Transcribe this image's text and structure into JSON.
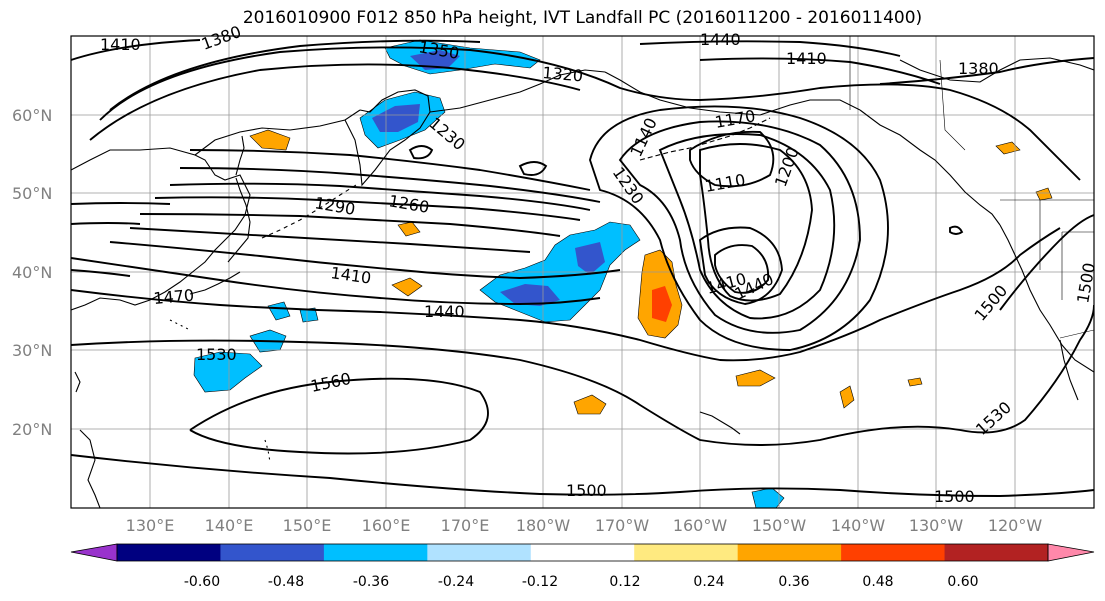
{
  "title": "2016010900 F012 850 hPa height, IVT Landfall PC (2016011200 - 2016011400)",
  "lat_labels": [
    "60°N",
    "50°N",
    "40°N",
    "30°N",
    "20°N"
  ],
  "lon_labels": [
    "130°E",
    "140°E",
    "150°E",
    "160°E",
    "170°E",
    "180°W",
    "170°W",
    "160°W",
    "150°W",
    "140°W",
    "130°W",
    "120°W"
  ],
  "height_contour_labels": [
    "1410",
    "1380",
    "1350",
    "1440",
    "1410",
    "1380",
    "1320",
    "1230",
    "1140",
    "1170",
    "1200",
    "1110",
    "1230",
    "1260",
    "1290",
    "1410",
    "1470",
    "1440",
    "1410",
    "1440",
    "1500",
    "1500",
    "1530",
    "1560",
    "1530",
    "1500",
    "1500"
  ],
  "colorbar": {
    "tick_labels": [
      "-0.60",
      "-0.48",
      "-0.36",
      "-0.24",
      "-0.12",
      "0.12",
      "0.24",
      "0.36",
      "0.48",
      "0.60"
    ],
    "colors": [
      "#9933cc",
      "#000080",
      "#3355cc",
      "#00bfff",
      "#b0e2ff",
      "#ffffff",
      "#ffea80",
      "#ffa500",
      "#ff4000",
      "#b22222",
      "#ff88aa"
    ]
  },
  "colors": {
    "contour": "#000000",
    "coastline": "#000000",
    "grid": "#999999",
    "axis_label": "#808080"
  }
}
